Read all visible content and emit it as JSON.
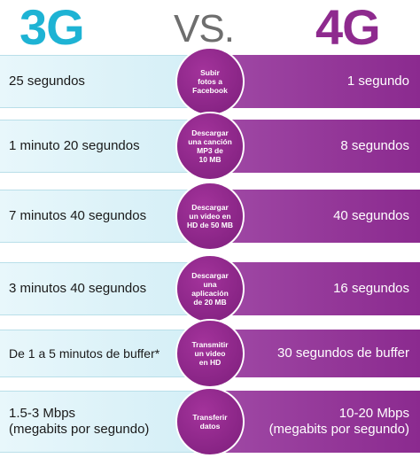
{
  "header": {
    "left": "3G",
    "middle": "VS.",
    "right": "4G"
  },
  "rows": [
    {
      "left": "25 segundos",
      "center": "Subir\nfotos a\nFacebook",
      "right": "1 segundo"
    },
    {
      "left": "1 minuto 20 segundos",
      "center": "Descargar\nuna canción\nMP3 de\n10 MB",
      "right": "8 segundos"
    },
    {
      "left": "7 minutos 40 segundos",
      "center": "Descargar\nun video en\nHD de 50 MB",
      "right": "40 segundos"
    },
    {
      "left": "3 minutos 40 segundos",
      "center": "Descargar\nuna\naplicación\nde 20 MB",
      "right": "16 segundos"
    },
    {
      "left": "De 1 a 5 minutos de buffer*",
      "center": "Transmitir\nun video\nen HD",
      "right": "30 segundos de buffer"
    },
    {
      "left": "1.5-3 Mbps\n(megabits por segundo)",
      "center": "Transferir\ndatos",
      "right": "10-20 Mbps\n(megabits por segundo)"
    }
  ]
}
